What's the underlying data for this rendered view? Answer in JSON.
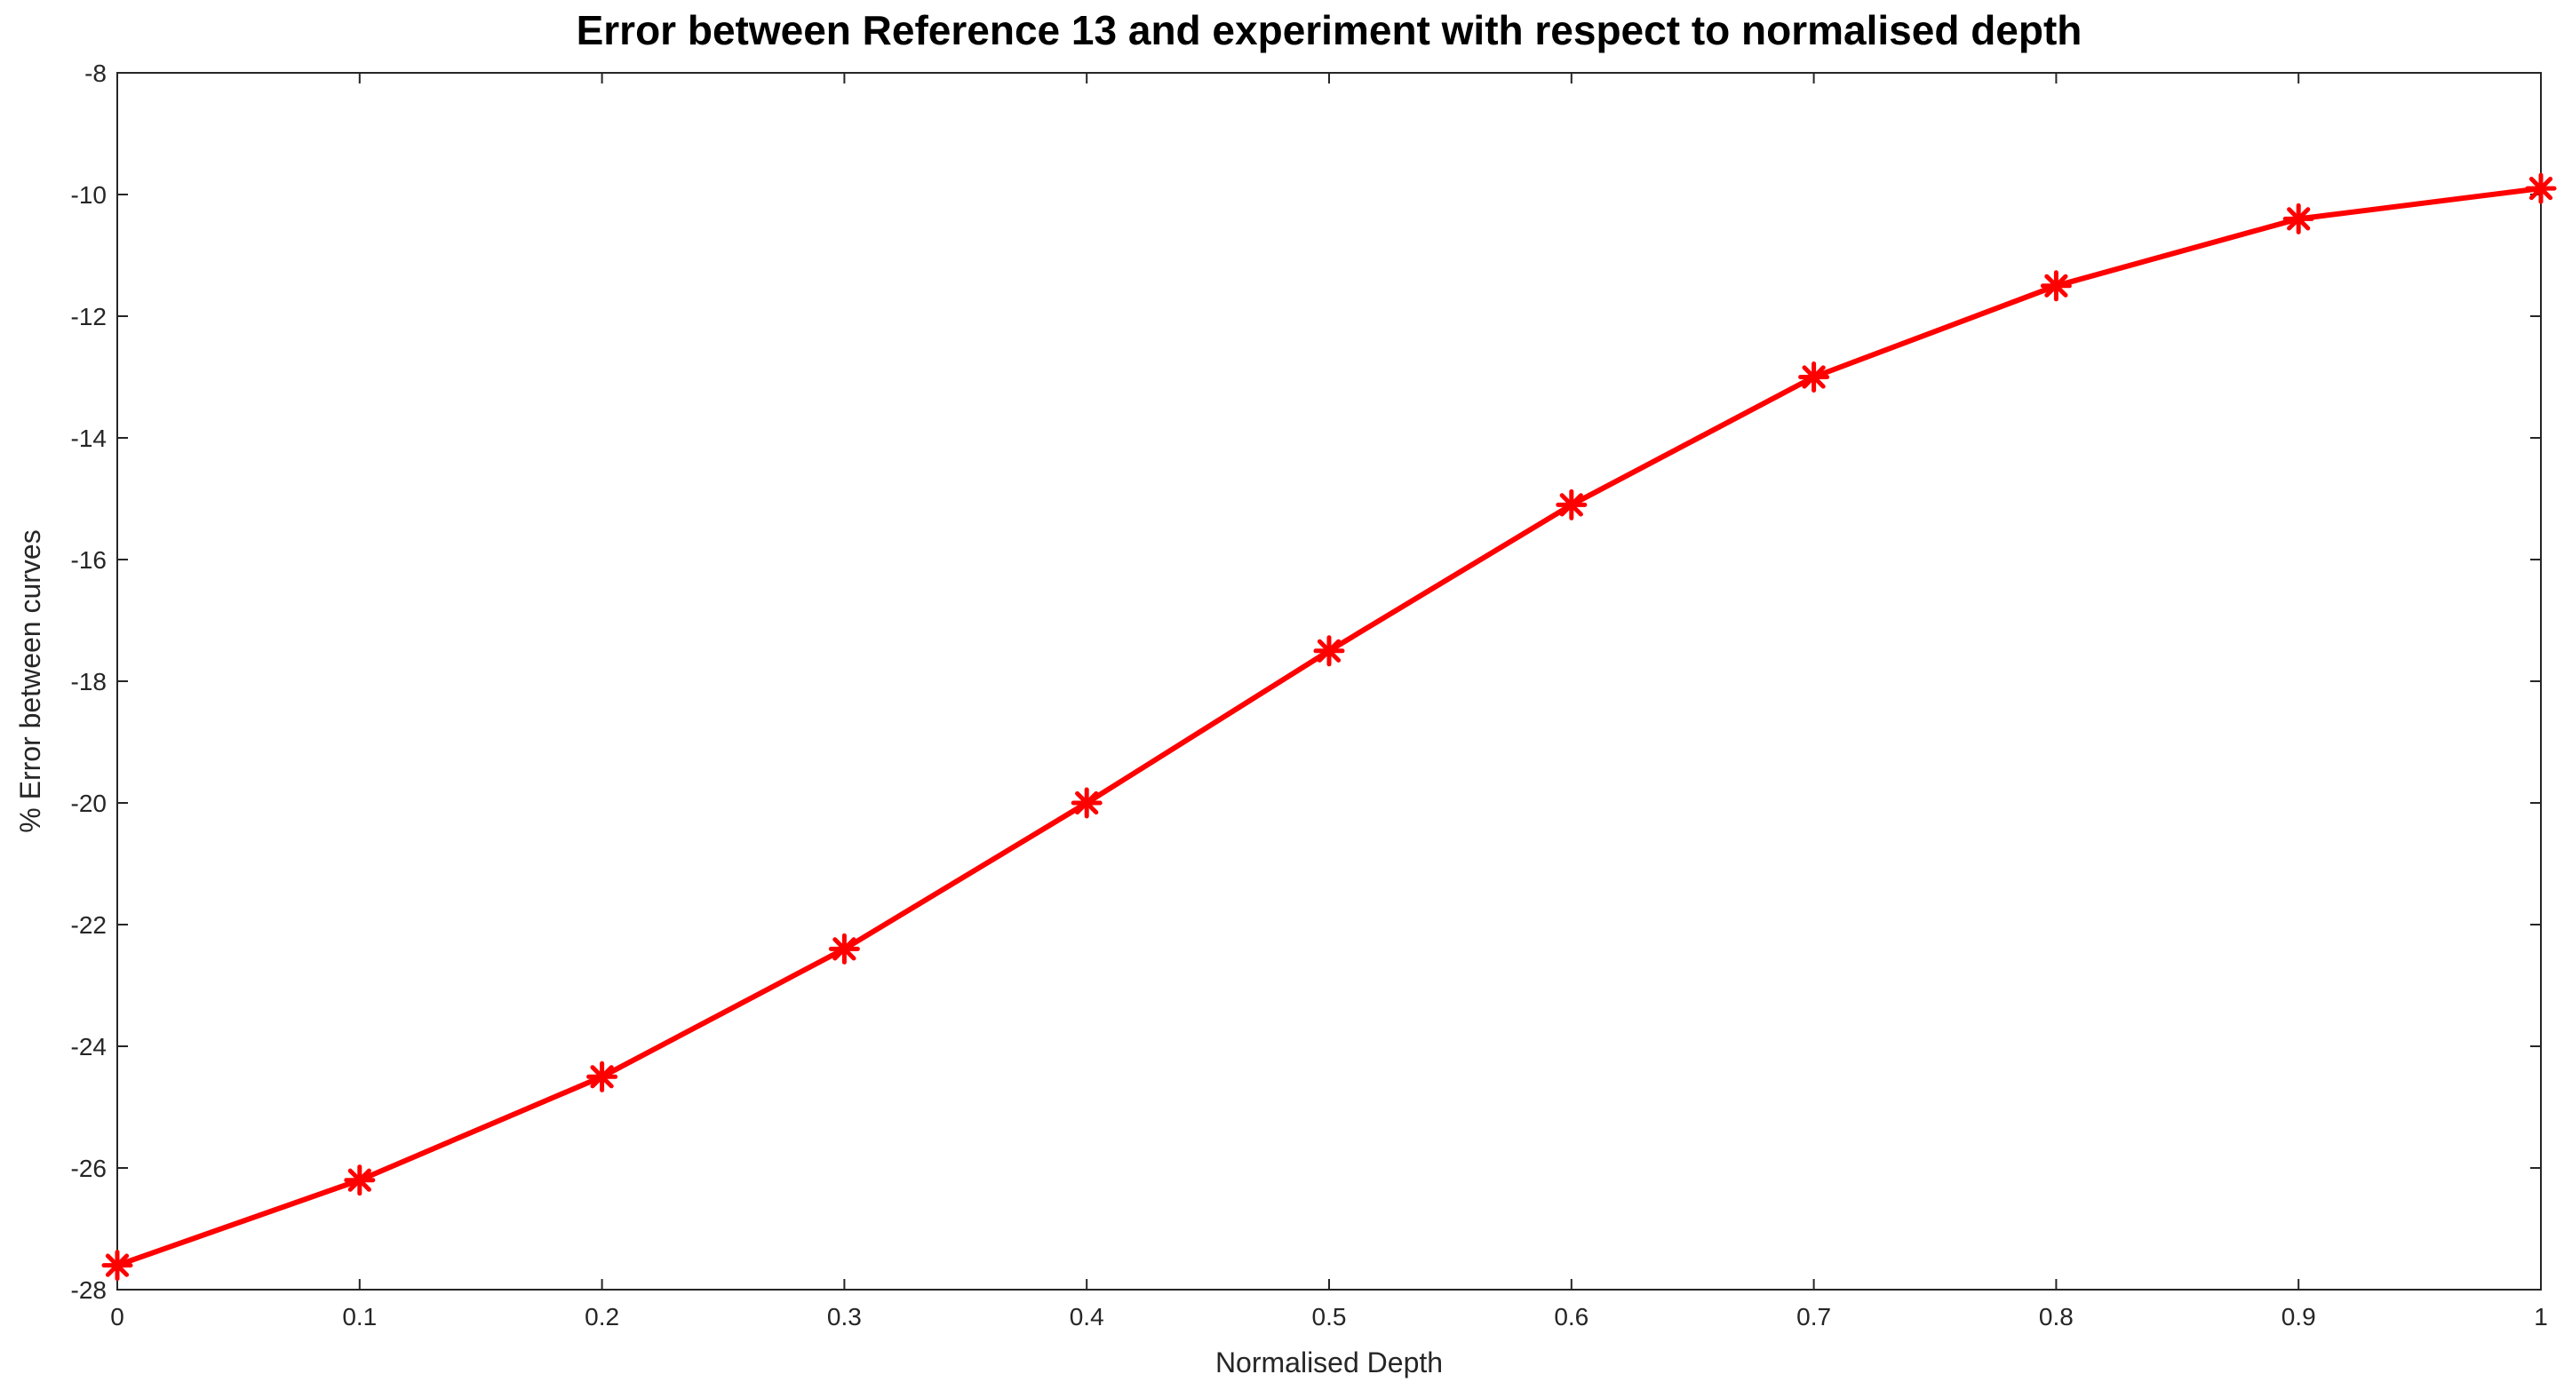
{
  "chart_data": {
    "type": "line",
    "title": "Error between Reference 13 and experiment with respect to normalised depth",
    "xlabel": "Normalised Depth",
    "ylabel": "% Error between curves",
    "xlim": [
      0,
      1
    ],
    "ylim": [
      -28,
      -8
    ],
    "xticks": [
      "0",
      "0.1",
      "0.2",
      "0.3",
      "0.4",
      "0.5",
      "0.6",
      "0.7",
      "0.8",
      "0.9",
      "1"
    ],
    "yticks": [
      "-8",
      "-10",
      "-12",
      "-14",
      "-16",
      "-18",
      "-20",
      "-22",
      "-24",
      "-26",
      "-28"
    ],
    "grid": false,
    "legend": "none",
    "series": [
      {
        "color": "#ff0000",
        "marker": "asterisk",
        "x": [
          0,
          0.1,
          0.2,
          0.3,
          0.4,
          0.5,
          0.6,
          0.7,
          0.8,
          0.9,
          1.0
        ],
        "y": [
          -27.6,
          -26.2,
          -24.5,
          -22.4,
          -20.0,
          -17.5,
          -15.1,
          -13.0,
          -11.5,
          -10.4,
          -9.9
        ]
      }
    ]
  }
}
